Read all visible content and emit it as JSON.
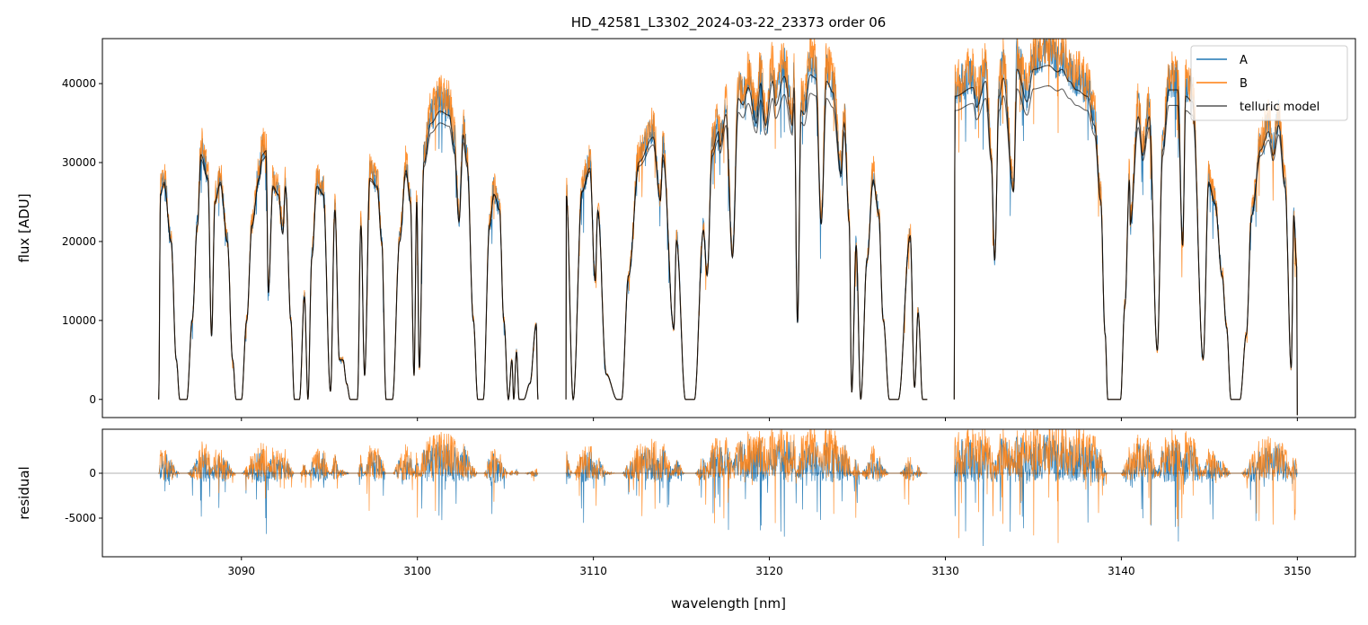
{
  "chart_data": [
    {
      "type": "line",
      "title": "HD_42581_L3302_2024-03-22_23373  order 06",
      "xlabel": "",
      "ylabel": "flux [ADU]",
      "xlim": [
        3082.1,
        3153.3
      ],
      "ylim": [
        -2300,
        45700
      ],
      "yticks": [
        0,
        10000,
        20000,
        30000,
        40000
      ],
      "ytick_labels": [
        "0",
        "10000",
        "20000",
        "30000",
        "40000"
      ],
      "xticks": [
        3090,
        3100,
        3110,
        3120,
        3130,
        3140,
        3150
      ],
      "grid": false,
      "legend": {
        "position": "top-right",
        "entries": [
          "A",
          "B",
          "telluric model"
        ]
      },
      "colors": {
        "A": "#1f77b4",
        "B": "#ff7f0e",
        "telluric model": "#000000"
      },
      "series": [
        {
          "name": "telluric model",
          "segments": [
            [
              [
                3085.3,
                0
              ],
              [
                3085.4,
                26000
              ],
              [
                3085.6,
                27500
              ],
              [
                3086.0,
                20000
              ],
              [
                3086.3,
                5000
              ],
              [
                3086.5,
                0
              ],
              [
                3086.9,
                0
              ],
              [
                3087.2,
                10000
              ],
              [
                3087.5,
                22000
              ],
              [
                3087.7,
                31000
              ],
              [
                3088.1,
                28000
              ],
              [
                3088.3,
                8000
              ],
              [
                3088.5,
                25000
              ],
              [
                3088.8,
                27500
              ],
              [
                3089.2,
                20000
              ],
              [
                3089.5,
                5000
              ],
              [
                3089.7,
                0
              ],
              [
                3090.0,
                0
              ],
              [
                3090.3,
                10000
              ],
              [
                3090.6,
                22000
              ],
              [
                3091.0,
                28000
              ],
              [
                3091.2,
                31000
              ],
              [
                3091.4,
                31500
              ],
              [
                3091.53,
                13500
              ],
              [
                3091.79,
                27000
              ],
              [
                3092.09,
                26000
              ],
              [
                3092.35,
                21000
              ],
              [
                3092.5,
                27000
              ],
              [
                3092.81,
                10000
              ],
              [
                3093.01,
                0
              ],
              [
                3093.3,
                0
              ],
              [
                3093.58,
                13000
              ],
              [
                3093.78,
                0
              ],
              [
                3094.0,
                18000
              ],
              [
                3094.29,
                27000
              ],
              [
                3094.65,
                26000
              ],
              [
                3095.06,
                1000
              ],
              [
                3095.31,
                24000
              ],
              [
                3095.57,
                5000
              ],
              [
                3095.77,
                5000
              ],
              [
                3095.98,
                2000
              ],
              [
                3096.18,
                0
              ],
              [
                3096.59,
                0
              ],
              [
                3096.79,
                22000
              ],
              [
                3097.0,
                3000
              ],
              [
                3097.3,
                28000
              ],
              [
                3097.71,
                27000
              ],
              [
                3097.97,
                20000
              ],
              [
                3098.22,
                0
              ],
              [
                3098.58,
                0
              ],
              [
                3098.99,
                20000
              ],
              [
                3099.35,
                29000
              ],
              [
                3099.6,
                25000
              ],
              [
                3099.81,
                3000
              ],
              [
                3099.96,
                25000
              ],
              [
                3100.11,
                4000
              ],
              [
                3100.37,
                30000
              ],
              [
                3100.78,
                35000
              ],
              [
                3101.29,
                36500
              ],
              [
                3101.8,
                36000
              ],
              [
                3102.1,
                32000
              ],
              [
                3102.36,
                22500
              ],
              [
                3102.61,
                33500
              ],
              [
                3102.82,
                30000
              ],
              [
                3103.18,
                10000
              ],
              [
                3103.43,
                0
              ],
              [
                3103.74,
                0
              ],
              [
                3104.1,
                22000
              ],
              [
                3104.35,
                26000
              ],
              [
                3104.66,
                24000
              ],
              [
                3104.91,
                10000
              ],
              [
                3105.17,
                0
              ],
              [
                3105.37,
                5000
              ],
              [
                3105.47,
                0
              ],
              [
                3105.63,
                6000
              ],
              [
                3105.78,
                0
              ],
              [
                3106.04,
                0
              ],
              [
                3106.39,
                2000
              ],
              [
                3106.75,
                9500
              ],
              [
                3106.85,
                0
              ]
            ],
            [
              [
                3108.44,
                0
              ],
              [
                3108.46,
                25800
              ],
              [
                3108.85,
                0
              ],
              [
                3109.36,
                26400
              ],
              [
                3109.8,
                29300
              ],
              [
                3110.1,
                15000
              ],
              [
                3110.25,
                23900
              ],
              [
                3110.73,
                3200
              ],
              [
                3111.35,
                0
              ],
              [
                3111.6,
                0
              ],
              [
                3112.0,
                15700
              ],
              [
                3112.6,
                30100
              ],
              [
                3113.4,
                33200
              ],
              [
                3113.8,
                25200
              ],
              [
                3113.95,
                31000
              ],
              [
                3114.57,
                8900
              ],
              [
                3114.72,
                20100
              ],
              [
                3115.23,
                0
              ],
              [
                3115.74,
                0
              ],
              [
                3116.25,
                21400
              ],
              [
                3116.46,
                15700
              ],
              [
                3116.76,
                31600
              ],
              [
                3117.1,
                33900
              ],
              [
                3117.2,
                32000
              ],
              [
                3117.53,
                36100
              ],
              [
                3117.9,
                18000
              ],
              [
                3118.24,
                38100
              ],
              [
                3118.5,
                37300
              ],
              [
                3118.8,
                39500
              ],
              [
                3119.26,
                35000
              ],
              [
                3119.5,
                40000
              ],
              [
                3119.78,
                34700
              ],
              [
                3120.18,
                40300
              ],
              [
                3120.35,
                37200
              ],
              [
                3120.85,
                40900
              ],
              [
                3121.3,
                34700
              ],
              [
                3121.4,
                39500
              ],
              [
                3121.6,
                9700
              ],
              [
                3121.8,
                36600
              ],
              [
                3121.97,
                36100
              ],
              [
                3122.33,
                41100
              ],
              [
                3122.64,
                40700
              ],
              [
                3122.94,
                22200
              ],
              [
                3123.25,
                40300
              ],
              [
                3123.6,
                38900
              ],
              [
                3124.07,
                28600
              ],
              [
                3124.25,
                35000
              ],
              [
                3124.53,
                22500
              ],
              [
                3124.68,
                900
              ],
              [
                3124.93,
                19500
              ],
              [
                3125.19,
                0
              ],
              [
                3125.55,
                17600
              ],
              [
                3125.9,
                27800
              ],
              [
                3126.2,
                23600
              ],
              [
                3126.47,
                10000
              ],
              [
                3126.82,
                0
              ],
              [
                3127.33,
                0
              ],
              [
                3128.0,
                20700
              ],
              [
                3128.25,
                1500
              ],
              [
                3128.45,
                11000
              ],
              [
                3128.71,
                0
              ],
              [
                3128.97,
                0
              ]
            ],
            [
              [
                3130.5,
                0
              ],
              [
                3130.55,
                38400
              ],
              [
                3131.57,
                39500
              ],
              [
                3131.77,
                37000
              ],
              [
                3132.29,
                40300
              ],
              [
                3132.6,
                30900
              ],
              [
                3132.8,
                17600
              ],
              [
                3133.05,
                38400
              ],
              [
                3133.3,
                40700
              ],
              [
                3133.87,
                26400
              ],
              [
                3134.07,
                41800
              ],
              [
                3134.64,
                37700
              ],
              [
                3135.0,
                41800
              ],
              [
                3135.86,
                42300
              ],
              [
                3136.37,
                41500
              ],
              [
                3136.62,
                41800
              ],
              [
                3137.04,
                40300
              ],
              [
                3137.45,
                39200
              ],
              [
                3138.06,
                38400
              ],
              [
                3138.47,
                34700
              ],
              [
                3138.82,
                25200
              ],
              [
                3139.08,
                8200
              ],
              [
                3139.23,
                0
              ],
              [
                3139.95,
                0
              ],
              [
                3140.2,
                11900
              ],
              [
                3140.46,
                27800
              ],
              [
                3140.51,
                22200
              ],
              [
                3140.96,
                35800
              ],
              [
                3141.22,
                30900
              ],
              [
                3141.58,
                35800
              ],
              [
                3142.04,
                6200
              ],
              [
                3142.35,
                31600
              ],
              [
                3142.7,
                39200
              ],
              [
                3143.2,
                39200
              ],
              [
                3143.48,
                19500
              ],
              [
                3143.66,
                38400
              ],
              [
                3144.04,
                37700
              ],
              [
                3144.65,
                5100
              ],
              [
                3144.96,
                27500
              ],
              [
                3145.32,
                24800
              ],
              [
                3145.72,
                15700
              ],
              [
                3145.98,
                9100
              ],
              [
                3146.23,
                0
              ],
              [
                3146.74,
                0
              ],
              [
                3147.1,
                8200
              ],
              [
                3147.4,
                23300
              ],
              [
                3147.91,
                31600
              ],
              [
                3148.37,
                33900
              ],
              [
                3148.62,
                30900
              ],
              [
                3148.94,
                34700
              ],
              [
                3149.3,
                27000
              ],
              [
                3149.65,
                4000
              ],
              [
                3149.8,
                23300
              ],
              [
                3149.96,
                16800
              ],
              [
                3150.0,
                -2000
              ]
            ]
          ]
        },
        {
          "name": "A"
        },
        {
          "name": "B"
        }
      ]
    },
    {
      "type": "line",
      "xlabel": "wavelength [nm]",
      "ylabel": "residual",
      "xlim": [
        3082.1,
        3153.3
      ],
      "ylim": [
        -9300,
        4900
      ],
      "yticks": [
        0,
        -5000
      ],
      "ytick_labels": [
        "0",
        "-5000"
      ],
      "xticks": [
        3090,
        3100,
        3110,
        3120,
        3130,
        3140,
        3150
      ],
      "xtick_labels": [
        "3090",
        "3100",
        "3110",
        "3120",
        "3130",
        "3140",
        "3150"
      ],
      "grid": false,
      "reference_line": 0,
      "series": [
        {
          "name": "A"
        },
        {
          "name": "B"
        }
      ]
    }
  ]
}
